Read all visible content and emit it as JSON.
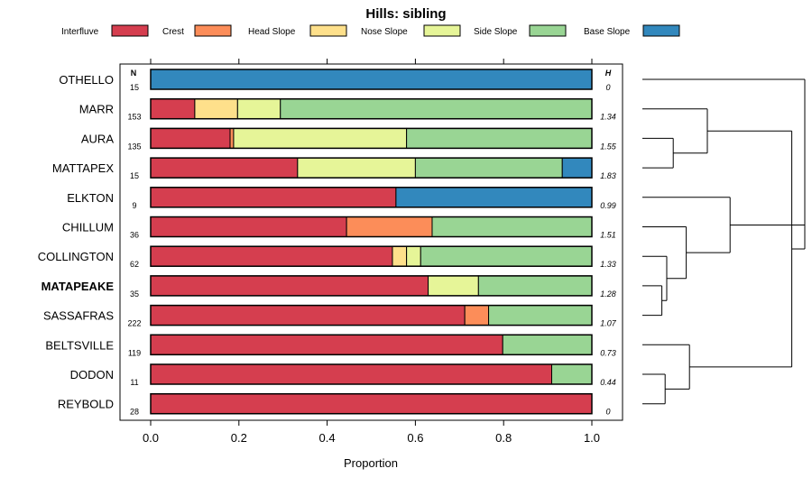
{
  "chart_data": {
    "type": "stacked-bar",
    "title": "Hills: sibling",
    "xlabel": "Proportion",
    "xlim": [
      0,
      1
    ],
    "xticks": [
      "0.0",
      "0.2",
      "0.4",
      "0.6",
      "0.8",
      "1.0"
    ],
    "n_header": "N",
    "h_header": "H",
    "legend": [
      {
        "name": "Interfluve",
        "color": "#d53e4f"
      },
      {
        "name": "Crest",
        "color": "#fc8d59"
      },
      {
        "name": "Head Slope",
        "color": "#fee08b"
      },
      {
        "name": "Nose Slope",
        "color": "#e6f598"
      },
      {
        "name": "Side Slope",
        "color": "#99d594"
      },
      {
        "name": "Base Slope",
        "color": "#3288bd"
      }
    ],
    "series_order": [
      "Interfluve",
      "Crest",
      "Head Slope",
      "Nose Slope",
      "Side Slope",
      "Base Slope"
    ],
    "rows": [
      {
        "name": "OTHELLO",
        "n": "15",
        "h": "0",
        "bold": false,
        "values": [
          0,
          0,
          0,
          0,
          0,
          1.0
        ]
      },
      {
        "name": "MARR",
        "n": "153",
        "h": "1.34",
        "bold": false,
        "values": [
          0.1,
          0,
          0.097,
          0.097,
          0.706,
          0
        ]
      },
      {
        "name": "AURA",
        "n": "135",
        "h": "1.55",
        "bold": false,
        "values": [
          0.18,
          0.008,
          0,
          0.392,
          0.42,
          0
        ]
      },
      {
        "name": "MATTAPEX",
        "n": "15",
        "h": "1.83",
        "bold": false,
        "values": [
          0.333,
          0,
          0,
          0.267,
          0.333,
          0.067
        ]
      },
      {
        "name": "ELKTON",
        "n": "9",
        "h": "0.99",
        "bold": false,
        "values": [
          0.556,
          0,
          0,
          0,
          0,
          0.444
        ]
      },
      {
        "name": "CHILLUM",
        "n": "36",
        "h": "1.51",
        "bold": false,
        "values": [
          0.444,
          0.194,
          0,
          0,
          0.362,
          0
        ]
      },
      {
        "name": "COLLINGTON",
        "n": "62",
        "h": "1.33",
        "bold": false,
        "values": [
          0.548,
          0,
          0.032,
          0.032,
          0.388,
          0
        ]
      },
      {
        "name": "MATAPEAKE",
        "n": "35",
        "h": "1.28",
        "bold": true,
        "values": [
          0.629,
          0,
          0,
          0.114,
          0.257,
          0
        ]
      },
      {
        "name": "SASSAFRAS",
        "n": "222",
        "h": "1.07",
        "bold": false,
        "values": [
          0.712,
          0.054,
          0,
          0,
          0.234,
          0
        ]
      },
      {
        "name": "BELTSVILLE",
        "n": "119",
        "h": "0.73",
        "bold": false,
        "values": [
          0.798,
          0,
          0,
          0,
          0.202,
          0
        ]
      },
      {
        "name": "DODON",
        "n": "11",
        "h": "0.44",
        "bold": false,
        "values": [
          0.909,
          0,
          0,
          0,
          0.091,
          0
        ]
      },
      {
        "name": "REYBOLD",
        "n": "28",
        "h": "0",
        "bold": false,
        "values": [
          1.0,
          0,
          0,
          0,
          0,
          0
        ]
      }
    ],
    "dendrogram": {
      "leaf_order": [
        "OTHELLO",
        "MARR",
        "AURA",
        "MATTAPEX",
        "ELKTON",
        "CHILLUM",
        "COLLINGTON",
        "MATAPEAKE",
        "SASSAFRAS",
        "BELTSVILLE",
        "DODON",
        "REYBOLD"
      ],
      "merges": [
        [
          7,
          8,
          0.12
        ],
        [
          6,
          12,
          0.15
        ],
        [
          10,
          11,
          0.14
        ],
        [
          2,
          3,
          0.19
        ],
        [
          5,
          13,
          0.27
        ],
        [
          9,
          14,
          0.29
        ],
        [
          1,
          15,
          0.4
        ],
        [
          4,
          16,
          0.54
        ],
        [
          18,
          17,
          0.92
        ],
        [
          19,
          0,
          1.0
        ],
        [
          20,
          21,
          1.0
        ]
      ]
    }
  }
}
